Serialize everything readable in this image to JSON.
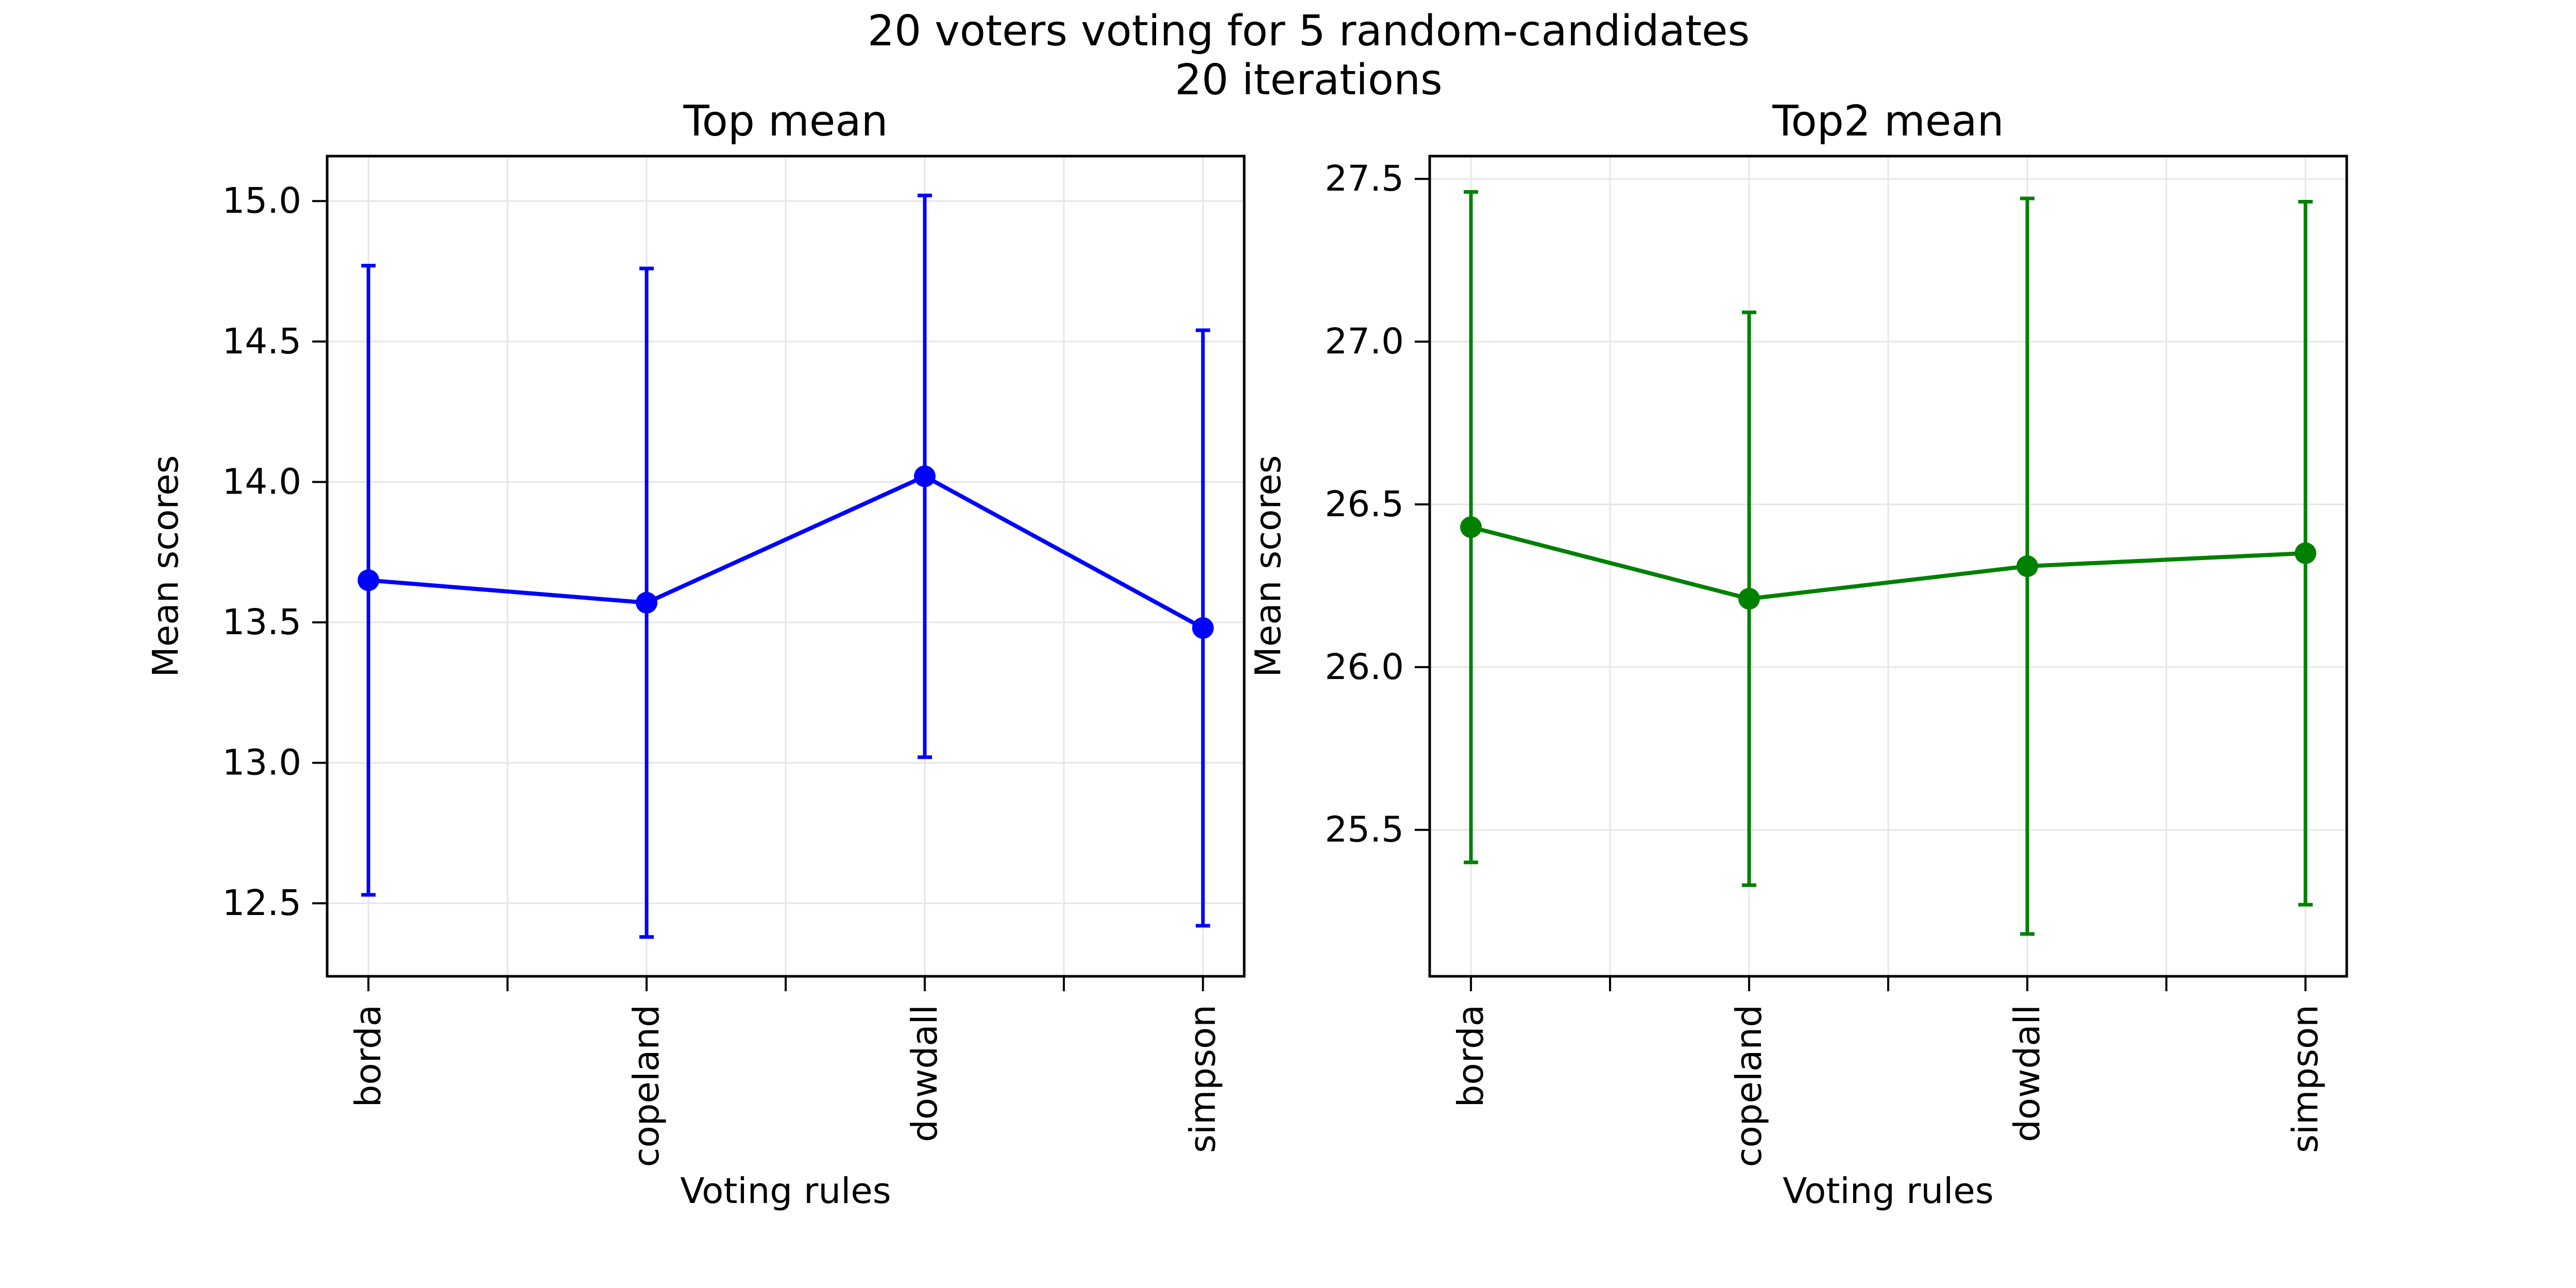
{
  "figure": {
    "suptitle_line1": "20 voters voting for 5 random-candidates",
    "suptitle_line2": "20 iterations"
  },
  "chart_data": [
    {
      "type": "line",
      "title": "Top mean",
      "xlabel": "Voting rules",
      "ylabel": "Mean scores",
      "categories": [
        "borda",
        "copeland",
        "dowdall",
        "simpson"
      ],
      "values": [
        13.65,
        13.57,
        14.02,
        13.48
      ],
      "error_low": [
        12.53,
        12.38,
        13.02,
        12.42
      ],
      "error_high": [
        14.77,
        14.76,
        15.02,
        14.54
      ],
      "ylim": [
        12.24,
        15.16
      ],
      "yticks": [
        12.5,
        13.0,
        13.5,
        14.0,
        14.5,
        15.0
      ],
      "ytick_labels": [
        "12.5",
        "13.0",
        "13.5",
        "14.0",
        "14.5",
        "15.0"
      ],
      "color": "#0000ff",
      "grid": true,
      "legend": "none"
    },
    {
      "type": "line",
      "title": "Top2 mean",
      "xlabel": "Voting rules",
      "ylabel": "Mean scores",
      "categories": [
        "borda",
        "copeland",
        "dowdall",
        "simpson"
      ],
      "values": [
        26.43,
        26.21,
        26.31,
        26.35
      ],
      "error_low": [
        25.4,
        25.33,
        25.18,
        25.27
      ],
      "error_high": [
        27.46,
        27.09,
        27.44,
        27.43
      ],
      "ylim": [
        25.05,
        27.57
      ],
      "yticks": [
        25.5,
        26.0,
        26.5,
        27.0,
        27.5
      ],
      "ytick_labels": [
        "25.5",
        "26.0",
        "26.5",
        "27.0",
        "27.5"
      ],
      "color": "#008000",
      "grid": true,
      "legend": "none"
    }
  ]
}
